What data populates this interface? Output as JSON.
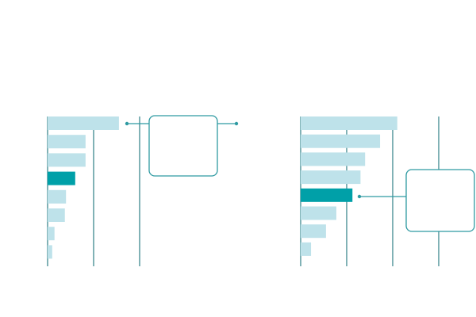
{
  "colors": {
    "bar": "#bee2ea",
    "bar_highlight": "#00a0a8",
    "axis": "#2e7f86",
    "callout_border": "#2f9aa2",
    "background": "#ffffff"
  },
  "chart_data": [
    {
      "type": "bar",
      "orientation": "horizontal",
      "title": "",
      "xlabel": "",
      "ylabel": "",
      "categories": [
        "",
        "",
        "",
        "",
        "",
        "",
        "",
        ""
      ],
      "values": [
        31,
        16.5,
        16.5,
        12,
        8,
        7.5,
        3,
        2
      ],
      "highlight_index": 3,
      "xlim": [
        0,
        40
      ],
      "gridlines_at": [
        0,
        20,
        40
      ],
      "grid": false,
      "legend": "none",
      "annotation": {
        "type": "callout",
        "text": "",
        "points_to_index": 0,
        "position": "right"
      }
    },
    {
      "type": "bar",
      "orientation": "horizontal",
      "title": "",
      "xlabel": "",
      "ylabel": "",
      "categories": [
        "",
        "",
        "",
        "",
        "",
        "",
        "",
        ""
      ],
      "values": [
        42,
        34.5,
        28,
        26,
        22.5,
        15.5,
        11,
        4.5
      ],
      "highlight_index": 4,
      "xlim": [
        0,
        60
      ],
      "gridlines_at": [
        0,
        20,
        40,
        60
      ],
      "grid": false,
      "legend": "none",
      "annotation": {
        "type": "callout",
        "text": "",
        "points_to_index": 4,
        "position": "right"
      }
    }
  ]
}
